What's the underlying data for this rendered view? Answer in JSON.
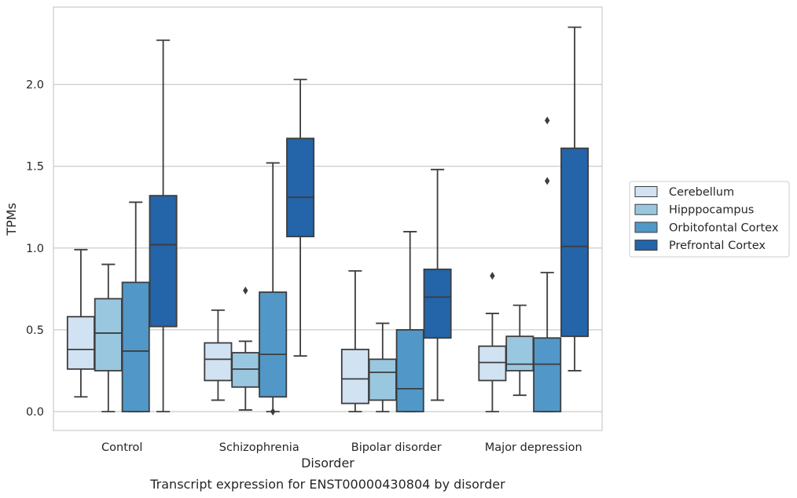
{
  "caption": "Transcript expression for ENST00000430804 by disorder",
  "chart_data": {
    "type": "box",
    "xlabel": "Disorder",
    "ylabel": "TPMs",
    "ylim": [
      -0.115,
      2.465
    ],
    "yticks": [
      0.0,
      0.5,
      1.0,
      1.5,
      2.0
    ],
    "ytick_labels": [
      "0.0",
      "0.5",
      "1.0",
      "1.5",
      "2.0"
    ],
    "grid": "horizontal",
    "legend_position": "right-outside",
    "categories": [
      "Control",
      "Schizophrenia",
      "Bipolar disorder",
      "Major depression"
    ],
    "series": [
      {
        "name": "Cerebellum",
        "color": "#d1e2f2",
        "boxes": [
          {
            "whislo": 0.09,
            "q1": 0.26,
            "med": 0.38,
            "q3": 0.58,
            "whishi": 0.99,
            "fliers": []
          },
          {
            "whislo": 0.07,
            "q1": 0.19,
            "med": 0.32,
            "q3": 0.42,
            "whishi": 0.62,
            "fliers": []
          },
          {
            "whislo": 0.0,
            "q1": 0.05,
            "med": 0.2,
            "q3": 0.38,
            "whishi": 0.86,
            "fliers": []
          },
          {
            "whislo": 0.0,
            "q1": 0.19,
            "med": 0.3,
            "q3": 0.4,
            "whishi": 0.6,
            "fliers": [
              0.83
            ]
          }
        ]
      },
      {
        "name": "Hipppocampus",
        "color": "#9ac7e0",
        "boxes": [
          {
            "whislo": 0.0,
            "q1": 0.25,
            "med": 0.48,
            "q3": 0.69,
            "whishi": 0.9,
            "fliers": []
          },
          {
            "whislo": 0.01,
            "q1": 0.15,
            "med": 0.26,
            "q3": 0.36,
            "whishi": 0.43,
            "fliers": [
              0.74
            ]
          },
          {
            "whislo": 0.0,
            "q1": 0.07,
            "med": 0.24,
            "q3": 0.32,
            "whishi": 0.54,
            "fliers": []
          },
          {
            "whislo": 0.1,
            "q1": 0.25,
            "med": 0.29,
            "q3": 0.46,
            "whishi": 0.65,
            "fliers": []
          }
        ]
      },
      {
        "name": "Orbitofontal Cortex",
        "color": "#5198c8",
        "boxes": [
          {
            "whislo": 0.0,
            "q1": 0.0,
            "med": 0.37,
            "q3": 0.79,
            "whishi": 1.28,
            "fliers": []
          },
          {
            "whislo": 0.0,
            "q1": 0.09,
            "med": 0.35,
            "q3": 0.73,
            "whishi": 1.52,
            "fliers": [
              0.0
            ]
          },
          {
            "whislo": 0.0,
            "q1": 0.0,
            "med": 0.14,
            "q3": 0.5,
            "whishi": 1.1,
            "fliers": []
          },
          {
            "whislo": 0.0,
            "q1": 0.0,
            "med": 0.29,
            "q3": 0.45,
            "whishi": 0.85,
            "fliers": [
              1.41,
              1.78
            ]
          }
        ]
      },
      {
        "name": "Prefrontal Cortex",
        "color": "#2464a8",
        "boxes": [
          {
            "whislo": 0.0,
            "q1": 0.52,
            "med": 1.02,
            "q3": 1.32,
            "whishi": 2.27,
            "fliers": []
          },
          {
            "whislo": 0.34,
            "q1": 1.07,
            "med": 1.31,
            "q3": 1.67,
            "whishi": 2.03,
            "fliers": []
          },
          {
            "whislo": 0.07,
            "q1": 0.45,
            "med": 0.7,
            "q3": 0.87,
            "whishi": 1.48,
            "fliers": []
          },
          {
            "whislo": 0.25,
            "q1": 0.46,
            "med": 1.01,
            "q3": 1.61,
            "whishi": 2.35,
            "fliers": []
          }
        ]
      }
    ]
  }
}
